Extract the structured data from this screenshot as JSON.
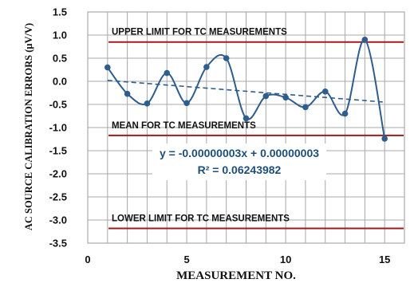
{
  "chart_data": {
    "type": "line",
    "xlabel": "MEASUREMENT NO.",
    "ylabel": "AC SOURCE CALIBRATION ERRORS (μV/V)",
    "xlim": [
      0,
      16
    ],
    "ylim": [
      -3.5,
      1.5
    ],
    "x_ticks": [
      0,
      5,
      10,
      15
    ],
    "y_ticks": [
      1.5,
      1.0,
      0.5,
      0.0,
      -0.5,
      -1.0,
      -1.5,
      -2.0,
      -2.5,
      -3.0,
      -3.5
    ],
    "y_tick_labels": [
      "1.5",
      "1.0",
      "0.5",
      "0.0",
      "-0.5",
      "-1.0",
      "-1.5",
      "-2.0",
      "-2.5",
      "-3.0",
      "-3.5"
    ],
    "grid": true,
    "series": [
      {
        "x": [
          1,
          2,
          3,
          4,
          5,
          6,
          7,
          8,
          9,
          10,
          11,
          12,
          13,
          14,
          15
        ],
        "values": [
          0.3,
          -0.27,
          -0.48,
          0.18,
          -0.47,
          0.31,
          0.5,
          -0.8,
          -0.32,
          -0.35,
          -0.56,
          -0.22,
          -0.7,
          0.9,
          -1.24
        ],
        "color": "#2e5d8e",
        "smooth": true
      }
    ],
    "trendline": {
      "equation": "y = -0.00000003x + 0.00000003",
      "r_squared": "R² = 0.06243982",
      "start": [
        1,
        0.02
      ],
      "end": [
        15,
        -0.45
      ],
      "color": "#2e5d8e"
    },
    "reference_lines": [
      {
        "label": "UPPER LIMIT FOR TC MEASUREMENTS",
        "value": 0.85,
        "color": "#a01c1c"
      },
      {
        "label": "MEAN FOR TC MEASUREMENTS",
        "value": -1.17,
        "color": "#a01c1c"
      },
      {
        "label": "LOWER LIMIT FOR TC MEASUREMENTS",
        "value": -3.18,
        "color": "#a01c1c"
      }
    ]
  }
}
